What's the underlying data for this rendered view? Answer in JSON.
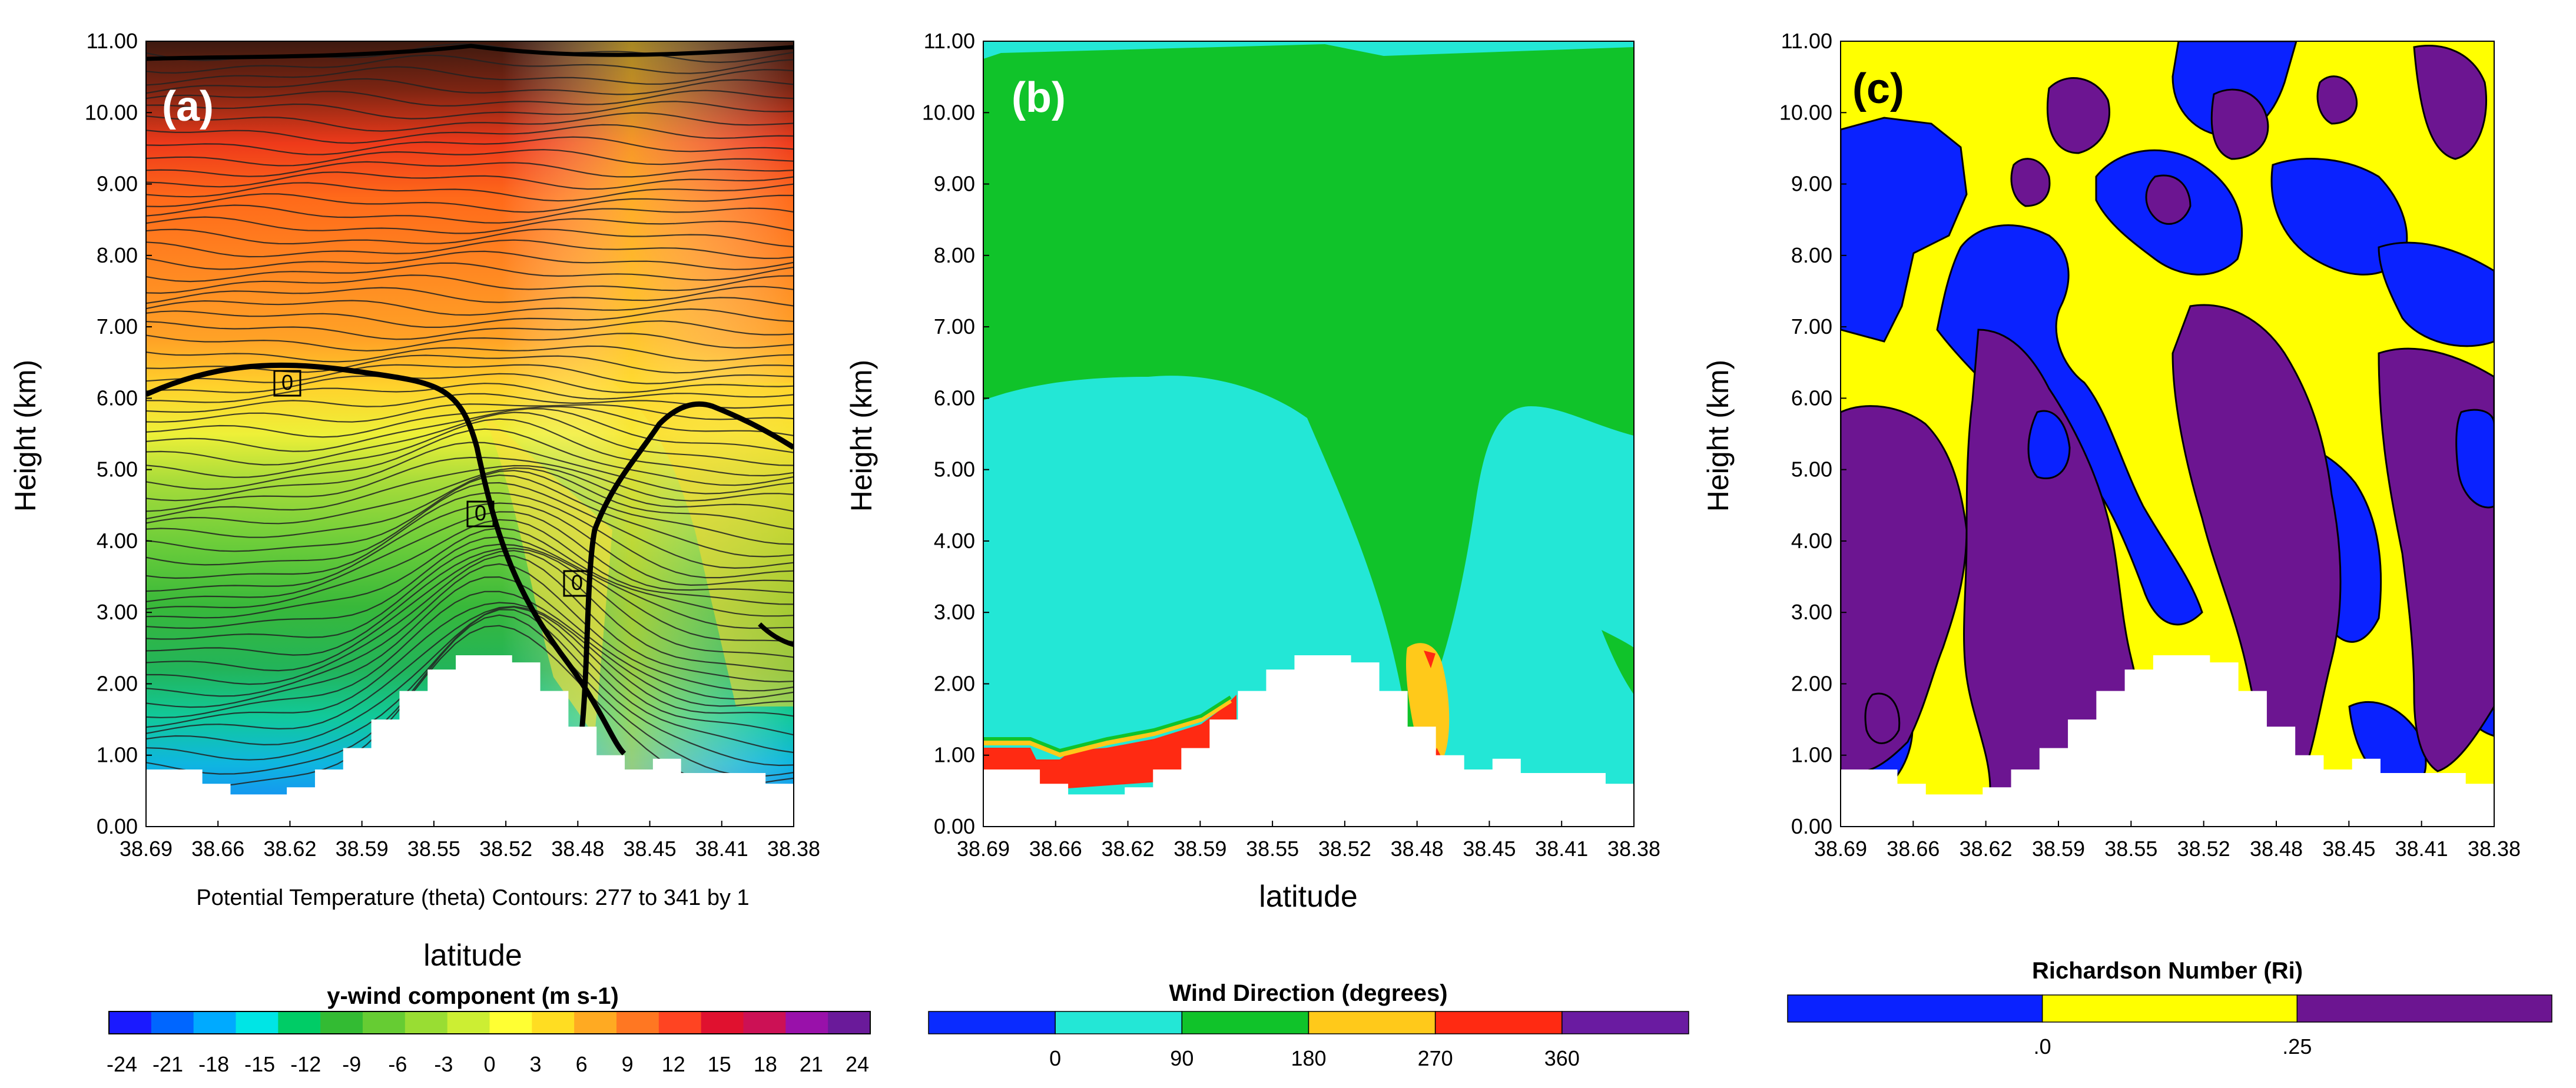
{
  "chart_data": [
    {
      "panel": "a",
      "type": "heatmap",
      "panel_label": "(a)",
      "ylabel": "Height (km)",
      "yticks": [
        "11.00",
        "10.00",
        "9.00",
        "8.00",
        "7.00",
        "6.00",
        "5.00",
        "4.00",
        "3.00",
        "2.00",
        "1.00",
        "0.00"
      ],
      "xticks": [
        "38.69",
        "38.66",
        "38.62",
        "38.59",
        "38.55",
        "38.52",
        "38.48",
        "38.45",
        "38.41",
        "38.38"
      ],
      "xlabel": "latitude",
      "ylim": [
        0,
        11
      ],
      "xlim": [
        38.69,
        38.38
      ],
      "caption": "Potential Temperature (theta) Contours: 277 to 341 by 1",
      "contour_labels": [
        "0",
        "0",
        "0"
      ],
      "colorbar": {
        "title": "y-wind component  (m s-1)",
        "ticks": [
          "-24",
          "-21",
          "-18",
          "-15",
          "-12",
          "-9",
          "-6",
          "-3",
          "0",
          "3",
          "6",
          "9",
          "12",
          "15",
          "18",
          "21",
          "24"
        ],
        "range": [
          -24,
          24
        ],
        "colors": [
          "#1a1aff",
          "#0066ff",
          "#00aaff",
          "#00e5e5",
          "#00cc66",
          "#33bb33",
          "#66cc33",
          "#99dd33",
          "#ccee33",
          "#ffff33",
          "#ffdd22",
          "#ffaa22",
          "#ff7722",
          "#ff4422",
          "#e0112f",
          "#cc1155",
          "#9911aa",
          "#6a1a9a"
        ]
      },
      "terrain_km": [
        0.8,
        0.8,
        0.6,
        0.45,
        0.45,
        0.55,
        0.8,
        1.1,
        1.5,
        1.9,
        2.2,
        2.4,
        2.4,
        2.3,
        1.9,
        1.4,
        1.0,
        0.8,
        0.95,
        0.75,
        0.75,
        0.75,
        0.6
      ]
    },
    {
      "panel": "b",
      "type": "heatmap",
      "panel_label": "(b)",
      "ylabel": "Height (km)",
      "yticks": [
        "11.00",
        "10.00",
        "9.00",
        "8.00",
        "7.00",
        "6.00",
        "5.00",
        "4.00",
        "3.00",
        "2.00",
        "1.00",
        "0.00"
      ],
      "xticks": [
        "38.69",
        "38.66",
        "38.62",
        "38.59",
        "38.55",
        "38.52",
        "38.48",
        "38.45",
        "38.41",
        "38.38"
      ],
      "xlabel": "latitude",
      "ylim": [
        0,
        11
      ],
      "colorbar": {
        "title": "Wind Direction  (degrees)",
        "ticks": [
          "0",
          "90",
          "180",
          "270",
          "360"
        ],
        "bins": [
          {
            "range": "< 0",
            "color": "#0a2bff"
          },
          {
            "range": "0-90",
            "color": "#23e7d6"
          },
          {
            "range": "90-180",
            "color": "#10c32a"
          },
          {
            "range": "180-270",
            "color": "#ffc91a"
          },
          {
            "range": "270-360",
            "color": "#ff2a12"
          },
          {
            "range": "> 360",
            "color": "#6a1ba1"
          }
        ]
      }
    },
    {
      "panel": "c",
      "type": "heatmap",
      "panel_label": "(c)",
      "ylabel": "Height (km)",
      "yticks": [
        "11.00",
        "10.00",
        "9.00",
        "8.00",
        "7.00",
        "6.00",
        "5.00",
        "4.00",
        "3.00",
        "2.00",
        "1.00",
        "0.00"
      ],
      "xticks": [
        "38.69",
        "38.66",
        "38.62",
        "38.59",
        "38.55",
        "38.52",
        "38.48",
        "38.45",
        "38.41",
        "38.38"
      ],
      "ylim": [
        0,
        11
      ],
      "colorbar": {
        "title": "Richardson Number (Ri)",
        "ticks": [
          ".0",
          ".25"
        ],
        "bins": [
          {
            "range": "< 0",
            "color": "#0a22ff"
          },
          {
            "range": "0-0.25",
            "color": "#ffff00"
          },
          {
            "range": "> 0.25",
            "color": "#6c1591"
          }
        ]
      }
    }
  ],
  "colors": {
    "white": "#ffffff",
    "blue": "#0a22ff",
    "cyan": "#23e7d6",
    "green": "#10c32a",
    "yellow": "#ffff00",
    "orange": "#ffc91a",
    "red": "#ff2a12",
    "purple": "#6c1591"
  }
}
